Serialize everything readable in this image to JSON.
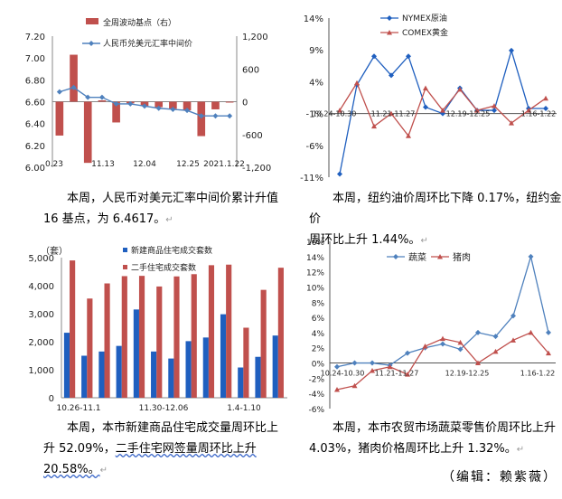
{
  "charts": [
    {
      "type": "bar+line",
      "legend": [
        "全周波动基点（右）",
        "人民币兑美元汇率中间价"
      ],
      "x_ticks": [
        "0.23",
        "11.13",
        "12.04",
        "12.25",
        "2021.1.22"
      ],
      "left_ticks": [
        "7.20",
        "7.00",
        "6.80",
        "6.60",
        "6.40",
        "6.20",
        "6.00"
      ],
      "right_ticks": [
        "1,200",
        "600",
        "0",
        "-600",
        "-1,200"
      ]
    },
    {
      "type": "line",
      "legend": [
        "NYMEX原油",
        "COMEX黄金"
      ],
      "x_ticks": [
        "10.24-10.30",
        "11.21-11.27",
        "12.19-12.25",
        "1.16-1.22"
      ],
      "y_ticks": [
        "14%",
        "9%",
        "4%",
        "-1%",
        "-6%",
        "-11%"
      ]
    },
    {
      "type": "bar",
      "unit": "（套）",
      "legend": [
        "新建商品住宅成交套数",
        "二手住宅成交套数"
      ],
      "x_ticks": [
        "10.26-11.1",
        "11.30-12.06",
        "1.4-1.10"
      ],
      "y_ticks": [
        "5,000",
        "4,000",
        "3,000",
        "2,000",
        "1,000",
        "0"
      ]
    },
    {
      "type": "line",
      "legend": [
        "蔬菜",
        "猪肉"
      ],
      "x_ticks": [
        "10.24-10.30",
        "11.21-11.27",
        "12.19-12.25",
        "1.16-1.22"
      ],
      "y_ticks": [
        "16%",
        "14%",
        "12%",
        "10%",
        "8%",
        "6%",
        "4%",
        "2%",
        "0%",
        "-2%",
        "-4%",
        "-6%"
      ]
    }
  ],
  "chart_data": [
    {
      "type": "bar+line",
      "series": [
        {
          "name": "全周波动基点（右）",
          "axis": "right",
          "values": [
            -620,
            860,
            -1120,
            25,
            -380,
            -30,
            -80,
            -100,
            -130,
            -160,
            -630,
            -140,
            0
          ]
        },
        {
          "name": "人民币兑美元汇率中间价",
          "axis": "left",
          "values": [
            6.69,
            6.73,
            6.64,
            6.64,
            6.58,
            6.58,
            6.56,
            6.54,
            6.53,
            6.52,
            6.47,
            6.47,
            6.47
          ]
        }
      ],
      "ylim_left": [
        6.0,
        7.2
      ],
      "ylim_right": [
        -1200,
        1200
      ]
    },
    {
      "type": "line",
      "series": [
        {
          "name": "NYMEX原油",
          "values": [
            -10.5,
            3.5,
            8.0,
            5.0,
            8.0,
            0.0,
            -1.0,
            3.0,
            -0.5,
            -0.5,
            8.9,
            -0.2,
            -0.2
          ]
        },
        {
          "name": "COMEX黄金",
          "values": [
            -0.5,
            3.8,
            -3.0,
            -1.0,
            -4.5,
            3.0,
            -0.5,
            2.8,
            -0.5,
            0.2,
            -2.5,
            -0.5,
            1.4
          ]
        }
      ],
      "ylim": [
        -11,
        14
      ]
    },
    {
      "type": "bar",
      "series": [
        {
          "name": "新建商品住宅成交套数",
          "values": [
            2320,
            1500,
            1650,
            1850,
            3150,
            1650,
            1400,
            2020,
            2150,
            2980,
            1080,
            1460,
            2220
          ]
        },
        {
          "name": "二手住宅成交套数",
          "values": [
            4900,
            3540,
            4080,
            4340,
            4350,
            3970,
            4330,
            4410,
            4730,
            4750,
            2500,
            3850,
            4640
          ]
        }
      ],
      "ylim": [
        0,
        5000
      ]
    },
    {
      "type": "line",
      "series": [
        {
          "name": "蔬菜",
          "values": [
            -0.5,
            0.0,
            0.0,
            -0.3,
            1.3,
            2.0,
            2.5,
            1.8,
            4.0,
            3.5,
            6.2,
            14.0,
            4.0
          ]
        },
        {
          "name": "猪肉",
          "values": [
            -3.5,
            -3.0,
            -1.0,
            -0.5,
            -1.5,
            2.2,
            3.2,
            2.7,
            0.0,
            1.5,
            3.0,
            4.0,
            1.3
          ]
        }
      ],
      "ylim": [
        -6,
        16
      ]
    }
  ],
  "captions": [
    {
      "text1": "本周，人民币对美元汇率中间价累计升值",
      "text2": "16 基点，为 6.4617。"
    },
    {
      "text1": "本周，纽约油价周环比下降 0.17%，纽约金价",
      "text2": "周环比上升 1.44%。"
    },
    {
      "text1": "本周，本市新建商品住宅成交量周环比上",
      "text2a": "升 52.09%，",
      "text2b": "二手住宅网签量周环比上升 20.58%。"
    },
    {
      "text1": "本周，本市农贸市场蔬菜零售价周环比上升",
      "text2": "4.03%，猪肉价格周环比上升 1.32%。"
    }
  ],
  "paragraph_mark": "↵",
  "editor": "（编辑：赖紫薇）",
  "colors": {
    "red": "#c0504d",
    "blue": "#4f81bd",
    "darkblue": "#1f5fbf",
    "red_line": "#c0504d"
  }
}
